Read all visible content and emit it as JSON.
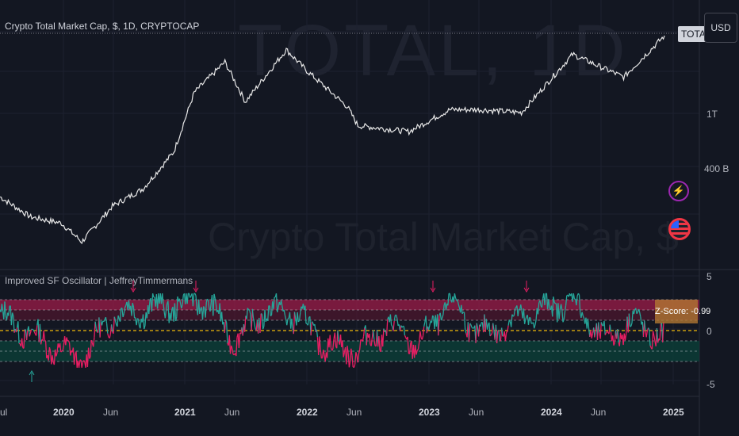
{
  "main_pane": {
    "legend": "Crypto Total Market Cap, $, 1D, CRYPTOCAP",
    "watermark_symbol": "TOTAL, 1D",
    "watermark_name": "Crypto Total Market Cap, $",
    "price_tag": "TOTAL",
    "currency_button": "USD",
    "y_ticks": [
      "1T",
      "400 B"
    ]
  },
  "osc_pane": {
    "legend": "Improved SF Oscillator | JeffreyTimmermans",
    "y_ticks": [
      "5",
      "0",
      "-5"
    ],
    "zscore_label": "Z-Score: -0.99"
  },
  "time_axis": {
    "labels": [
      "ul",
      "2020",
      "Jun",
      "2021",
      "Jun",
      "2022",
      "Jun",
      "2023",
      "Jun",
      "2024",
      "Jun",
      "2025"
    ],
    "bold": [
      false,
      true,
      false,
      true,
      false,
      true,
      false,
      true,
      false,
      true,
      false,
      true
    ]
  },
  "icons": [
    "lightning-icon",
    "us-flag-icon"
  ],
  "chart_data": [
    {
      "type": "line",
      "title": "Crypto Total Market Cap, $, 1D, CRYPTOCAP",
      "scale": "log",
      "y_ticks": [
        "1T",
        "400 B"
      ],
      "x": [
        "2019-07",
        "2019-10",
        "2020-01",
        "2020-03",
        "2020-06",
        "2020-09",
        "2020-12",
        "2021-02",
        "2021-05",
        "2021-07",
        "2021-11",
        "2022-01",
        "2022-05",
        "2022-06",
        "2022-11",
        "2023-03",
        "2023-06",
        "2023-10",
        "2024-03",
        "2024-08",
        "2024-12"
      ],
      "values": [
        300,
        220,
        200,
        150,
        260,
        340,
        600,
        1500,
        2400,
        1300,
        2900,
        2100,
        1200,
        900,
        820,
        1150,
        1150,
        1100,
        2700,
        1900,
        3600
      ]
    },
    {
      "type": "area",
      "title": "Improved SF Oscillator | JeffreyTimmermans",
      "y_ticks": [
        "5",
        "0",
        "-5"
      ],
      "bands": {
        "upper": [
          2,
          3
        ],
        "lower": [
          -3,
          -2
        ]
      },
      "x": [
        "2019-07",
        "2019-11",
        "2020-03",
        "2020-06",
        "2020-09",
        "2020-12",
        "2021-03",
        "2021-06",
        "2021-09",
        "2021-12",
        "2022-03",
        "2022-06",
        "2022-09",
        "2022-12",
        "2023-03",
        "2023-06",
        "2023-09",
        "2023-12",
        "2024-03",
        "2024-06",
        "2024-09",
        "2024-12"
      ],
      "values": [
        1.5,
        -1.0,
        -3.0,
        1.5,
        2.0,
        2.5,
        3.0,
        -1.0,
        2.0,
        1.5,
        -1.5,
        -2.0,
        0.5,
        -1.5,
        3.0,
        -0.5,
        0.8,
        2.0,
        3.0,
        -1.0,
        1.0,
        -0.99
      ]
    }
  ]
}
